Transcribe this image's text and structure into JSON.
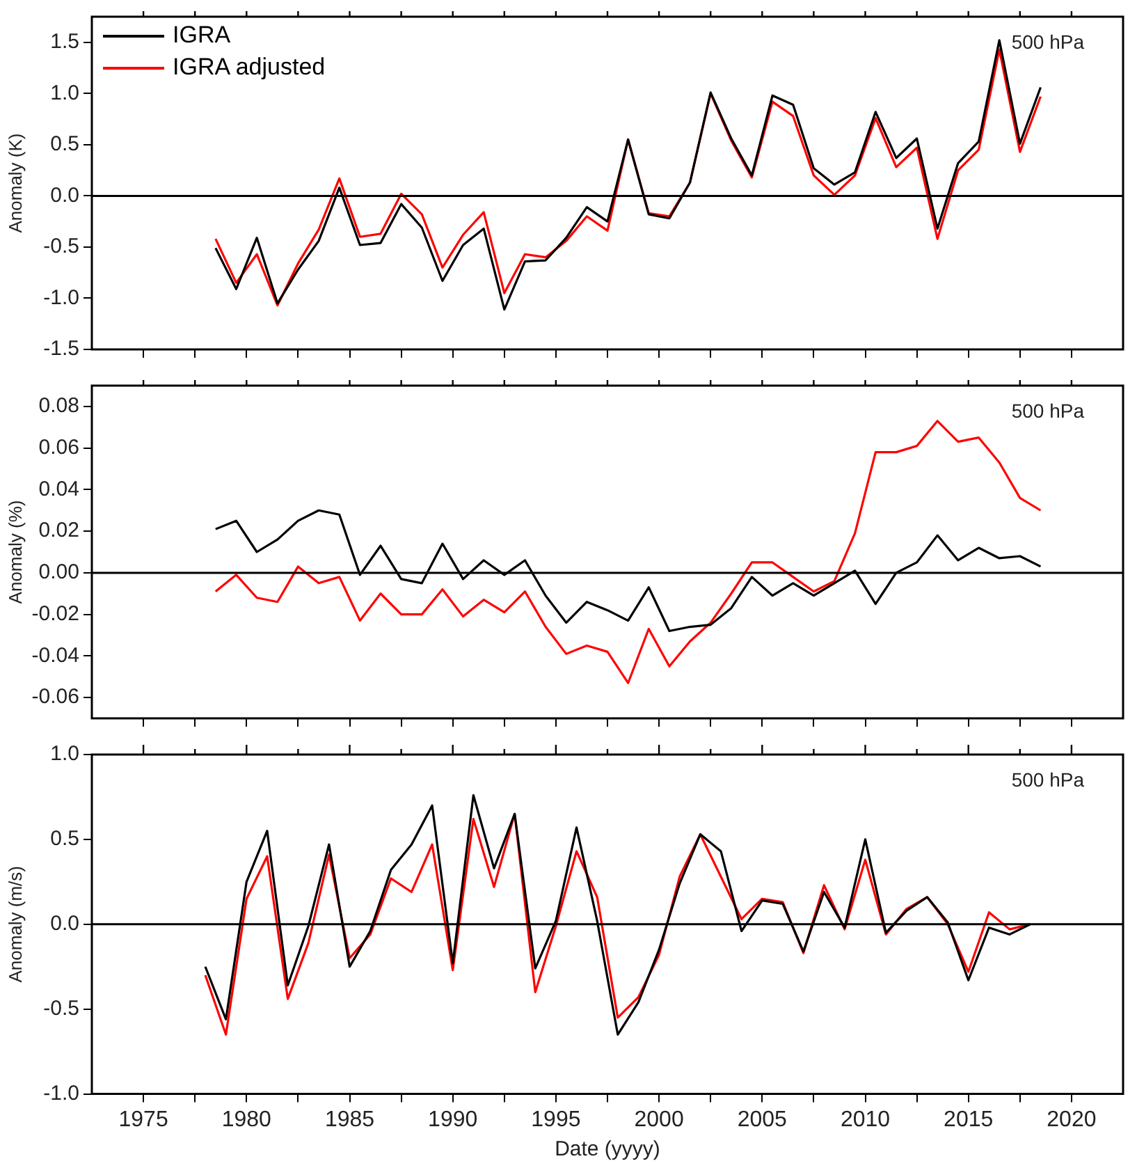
{
  "chart_data": [
    {
      "type": "line",
      "ylabel": "Anomaly (K)",
      "annotations": [
        "500 hPa"
      ],
      "legend": "top left",
      "marker": "none",
      "line_style": "solid",
      "grid": false,
      "tick_labels": "y",
      "xlim": [
        1972.5,
        2022.5
      ],
      "xticks": [
        {
          "value": 1975,
          "label": null
        },
        {
          "value": 1977.5,
          "label": null
        },
        {
          "value": 1980,
          "label": null
        },
        {
          "value": 1982.5,
          "label": null
        },
        {
          "value": 1985,
          "label": null
        },
        {
          "value": 1987.5,
          "label": null
        },
        {
          "value": 1990,
          "label": null
        },
        {
          "value": 1992.5,
          "label": null
        },
        {
          "value": 1995,
          "label": null
        },
        {
          "value": 1997.5,
          "label": null
        },
        {
          "value": 2000,
          "label": null
        },
        {
          "value": 2002.5,
          "label": null
        },
        {
          "value": 2005,
          "label": null
        },
        {
          "value": 2007.5,
          "label": null
        },
        {
          "value": 2010,
          "label": null
        },
        {
          "value": 2012.5,
          "label": null
        },
        {
          "value": 2015,
          "label": null
        },
        {
          "value": 2017.5,
          "label": null
        },
        {
          "value": 2020,
          "label": null
        }
      ],
      "ylim": [
        -1.5,
        1.75
      ],
      "yticks": [
        {
          "value": -1.5,
          "label": "-1.5"
        },
        {
          "value": -1,
          "label": "-1.0"
        },
        {
          "value": -0.5,
          "label": "-0.5"
        },
        {
          "value": 0,
          "label": "0.0"
        },
        {
          "value": 0.5,
          "label": "0.5"
        },
        {
          "value": 1,
          "label": "1.0"
        },
        {
          "value": 1.5,
          "label": "1.5"
        }
      ],
      "ref_lines": [
        {
          "axis": "y",
          "value": 0,
          "color": "#000000"
        }
      ],
      "x": [
        1978.5,
        1979.5,
        1980.5,
        1981.5,
        1982.5,
        1983.5,
        1984.5,
        1985.5,
        1986.5,
        1987.5,
        1988.5,
        1989.5,
        1990.5,
        1991.5,
        1992.5,
        1993.5,
        1994.5,
        1995.5,
        1996.5,
        1997.5,
        1998.5,
        1999.5,
        2000.5,
        2001.5,
        2002.5,
        2003.5,
        2004.5,
        2005.5,
        2006.5,
        2007.5,
        2008.5,
        2009.5,
        2010.5,
        2011.5,
        2012.5,
        2013.5,
        2014.5,
        2015.5,
        2016.5,
        2017.5,
        2018.5
      ],
      "series": [
        {
          "name": "IGRA",
          "color": "#000000",
          "values": [
            -0.51,
            -0.91,
            -0.41,
            -1.05,
            -0.72,
            -0.44,
            0.08,
            -0.48,
            -0.46,
            -0.08,
            -0.31,
            -0.83,
            -0.48,
            -0.32,
            -1.11,
            -0.64,
            -0.63,
            -0.41,
            -0.11,
            -0.25,
            0.55,
            -0.18,
            -0.22,
            0.13,
            1.01,
            0.56,
            0.2,
            0.98,
            0.89,
            0.27,
            0.11,
            0.23,
            0.82,
            0.37,
            0.56,
            -0.32,
            0.32,
            0.53,
            1.52,
            0.51,
            1.06
          ]
        },
        {
          "name": "IGRA adjusted",
          "color": "#ff0000",
          "values": [
            -0.42,
            -0.85,
            -0.57,
            -1.07,
            -0.66,
            -0.33,
            0.17,
            -0.4,
            -0.37,
            0.02,
            -0.18,
            -0.7,
            -0.38,
            -0.16,
            -0.95,
            -0.57,
            -0.6,
            -0.44,
            -0.2,
            -0.34,
            0.55,
            -0.17,
            -0.2,
            0.13,
            1.0,
            0.54,
            0.18,
            0.92,
            0.78,
            0.2,
            0.01,
            0.2,
            0.76,
            0.28,
            0.47,
            -0.42,
            0.25,
            0.45,
            1.43,
            0.43,
            0.97
          ]
        }
      ]
    },
    {
      "type": "line",
      "ylabel": "Anomaly (%)",
      "annotations": [
        "500 hPa"
      ],
      "marker": "none",
      "line_style": "solid",
      "grid": false,
      "tick_labels": "y",
      "xlim": [
        1972.5,
        2022.5
      ],
      "xticks": [
        {
          "value": 1975,
          "label": null
        },
        {
          "value": 1977.5,
          "label": null
        },
        {
          "value": 1980,
          "label": null
        },
        {
          "value": 1982.5,
          "label": null
        },
        {
          "value": 1985,
          "label": null
        },
        {
          "value": 1987.5,
          "label": null
        },
        {
          "value": 1990,
          "label": null
        },
        {
          "value": 1992.5,
          "label": null
        },
        {
          "value": 1995,
          "label": null
        },
        {
          "value": 1997.5,
          "label": null
        },
        {
          "value": 2000,
          "label": null
        },
        {
          "value": 2002.5,
          "label": null
        },
        {
          "value": 2005,
          "label": null
        },
        {
          "value": 2007.5,
          "label": null
        },
        {
          "value": 2010,
          "label": null
        },
        {
          "value": 2012.5,
          "label": null
        },
        {
          "value": 2015,
          "label": null
        },
        {
          "value": 2017.5,
          "label": null
        },
        {
          "value": 2020,
          "label": null
        }
      ],
      "ylim": [
        -0.07,
        0.09
      ],
      "yticks": [
        {
          "value": -0.06,
          "label": "-0.06"
        },
        {
          "value": -0.04,
          "label": "-0.04"
        },
        {
          "value": -0.02,
          "label": "-0.02"
        },
        {
          "value": 0,
          "label": "0.00"
        },
        {
          "value": 0.02,
          "label": "0.02"
        },
        {
          "value": 0.04,
          "label": "0.04"
        },
        {
          "value": 0.06,
          "label": "0.06"
        },
        {
          "value": 0.08,
          "label": "0.08"
        }
      ],
      "ref_lines": [
        {
          "axis": "y",
          "value": 0,
          "color": "#000000"
        }
      ],
      "x": [
        1978.5,
        1979.5,
        1980.5,
        1981.5,
        1982.5,
        1983.5,
        1984.5,
        1985.5,
        1986.5,
        1987.5,
        1988.5,
        1989.5,
        1990.5,
        1991.5,
        1992.5,
        1993.5,
        1994.5,
        1995.5,
        1996.5,
        1997.5,
        1998.5,
        1999.5,
        2000.5,
        2001.5,
        2002.5,
        2003.5,
        2004.5,
        2005.5,
        2006.5,
        2007.5,
        2008.5,
        2009.5,
        2010.5,
        2011.5,
        2012.5,
        2013.5,
        2014.5,
        2015.5,
        2016.5,
        2017.5,
        2018.5
      ],
      "series": [
        {
          "color": "#000000",
          "values": [
            0.021,
            0.025,
            0.01,
            0.016,
            0.025,
            0.03,
            0.028,
            -0.001,
            0.013,
            -0.003,
            -0.005,
            0.014,
            -0.003,
            0.006,
            -0.001,
            0.006,
            -0.011,
            -0.024,
            -0.014,
            -0.018,
            -0.023,
            -0.007,
            -0.028,
            -0.026,
            -0.025,
            -0.017,
            -0.002,
            -0.011,
            -0.005,
            -0.011,
            -0.005,
            0.001,
            -0.015,
            0.0,
            0.005,
            0.018,
            0.006,
            0.012,
            0.007,
            0.008,
            0.003
          ]
        },
        {
          "color": "#ff0000",
          "values": [
            -0.009,
            -0.001,
            -0.012,
            -0.014,
            0.003,
            -0.005,
            -0.002,
            -0.023,
            -0.01,
            -0.02,
            -0.02,
            -0.008,
            -0.021,
            -0.013,
            -0.019,
            -0.009,
            -0.026,
            -0.039,
            -0.035,
            -0.038,
            -0.053,
            -0.027,
            -0.045,
            -0.033,
            -0.024,
            -0.01,
            0.005,
            0.005,
            -0.002,
            -0.009,
            -0.004,
            0.019,
            0.058,
            0.058,
            0.061,
            0.073,
            0.063,
            0.065,
            0.053,
            0.036,
            0.03
          ]
        }
      ]
    },
    {
      "type": "line",
      "ylabel": "Anomaly (m/s)",
      "xlabel": "Date (yyyy)",
      "annotations": [
        "500 hPa"
      ],
      "marker": "none",
      "line_style": "solid",
      "grid": false,
      "xlim": [
        1972.5,
        2022.5
      ],
      "xticks": [
        1975,
        {
          "value": 1977.5,
          "label": null
        },
        1980,
        {
          "value": 1982.5,
          "label": null
        },
        1985,
        {
          "value": 1987.5,
          "label": null
        },
        1990,
        {
          "value": 1992.5,
          "label": null
        },
        1995,
        {
          "value": 1997.5,
          "label": null
        },
        2000,
        {
          "value": 2002.5,
          "label": null
        },
        2005,
        {
          "value": 2007.5,
          "label": null
        },
        2010,
        {
          "value": 2012.5,
          "label": null
        },
        2015,
        {
          "value": 2017.5,
          "label": null
        },
        2020
      ],
      "ylim": [
        -1,
        1
      ],
      "yticks": [
        {
          "value": -1,
          "label": "-1.0"
        },
        {
          "value": -0.5,
          "label": "-0.5"
        },
        {
          "value": 0,
          "label": "0.0"
        },
        {
          "value": 0.5,
          "label": "0.5"
        },
        {
          "value": 1,
          "label": "1.0"
        }
      ],
      "ref_lines": [
        {
          "axis": "y",
          "value": 0,
          "color": "#000000"
        }
      ],
      "x": [
        1978,
        1979,
        1980,
        1981,
        1982,
        1983,
        1984,
        1985,
        1986,
        1987,
        1988,
        1989,
        1990,
        1991,
        1992,
        1993,
        1994,
        1995,
        1996,
        1997,
        1998,
        1999,
        2000,
        2001,
        2002,
        2003,
        2004,
        2005,
        2006,
        2007,
        2008,
        2009,
        2010,
        2011,
        2012,
        2013,
        2014,
        2015,
        2016,
        2017,
        2018
      ],
      "series": [
        {
          "color": "#000000",
          "values": [
            -0.25,
            -0.56,
            0.25,
            0.55,
            -0.36,
            -0.01,
            0.47,
            -0.25,
            -0.04,
            0.32,
            0.47,
            0.7,
            -0.23,
            0.76,
            0.33,
            0.65,
            -0.26,
            0.02,
            0.57,
            0.02,
            -0.65,
            -0.46,
            -0.15,
            0.24,
            0.53,
            0.43,
            -0.04,
            0.14,
            0.12,
            -0.16,
            0.19,
            -0.02,
            0.5,
            -0.05,
            0.08,
            0.16,
            0.01,
            -0.33,
            -0.02,
            -0.06,
            0.0
          ]
        },
        {
          "color": "#ff0000",
          "values": [
            -0.3,
            -0.65,
            0.15,
            0.4,
            -0.44,
            -0.11,
            0.41,
            -0.2,
            -0.06,
            0.27,
            0.19,
            0.47,
            -0.27,
            0.62,
            0.22,
            0.65,
            -0.4,
            -0.01,
            0.43,
            0.16,
            -0.55,
            -0.43,
            -0.18,
            0.28,
            0.53,
            0.28,
            0.03,
            0.15,
            0.13,
            -0.17,
            0.23,
            -0.03,
            0.38,
            -0.06,
            0.09,
            0.16,
            0.0,
            -0.28,
            0.07,
            -0.03,
            0.0
          ]
        }
      ]
    }
  ]
}
